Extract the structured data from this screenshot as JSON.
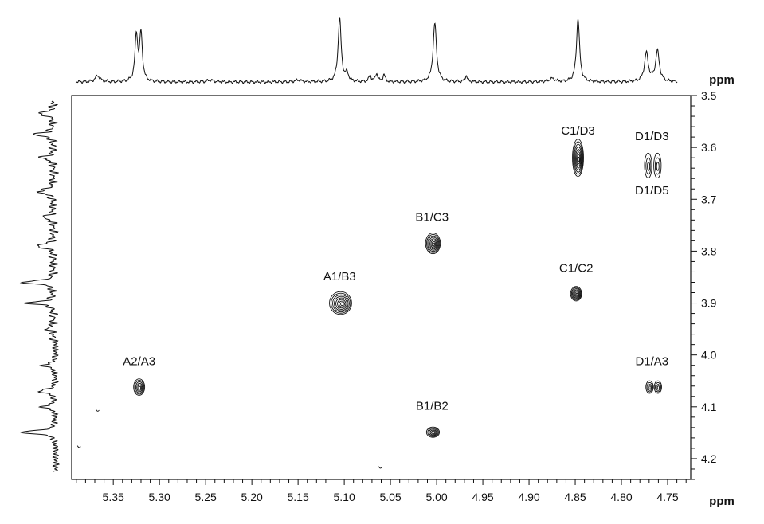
{
  "chart_data": {
    "type": "2D NMR contour plot (COSY/TOCSY-style)",
    "x_axis": {
      "unit_label": "ppm",
      "range": [
        5.395,
        4.725
      ],
      "reversed": true,
      "ticks": [
        5.35,
        5.3,
        5.25,
        5.2,
        5.15,
        5.1,
        5.05,
        5.0,
        4.95,
        4.9,
        4.85,
        4.8,
        4.75
      ],
      "tick_labels": [
        "5.35",
        "5.30",
        "5.25",
        "5.20",
        "5.15",
        "5.10",
        "5.05",
        "5.00",
        "4.95",
        "4.90",
        "4.85",
        "4.80",
        "4.75"
      ]
    },
    "y_axis": {
      "unit_label": "ppm",
      "range": [
        3.5,
        4.24
      ],
      "position": "right",
      "ticks": [
        3.5,
        3.6,
        3.7,
        3.8,
        3.9,
        4.0,
        4.1,
        4.2
      ],
      "tick_labels": [
        "3.5",
        "3.6",
        "3.7",
        "3.8",
        "3.9",
        "4.0",
        "4.1",
        "4.2"
      ]
    },
    "peaks": [
      {
        "label": "C1/D3",
        "x": 4.847,
        "y": 3.62,
        "rings": 8,
        "width": 0.006,
        "height": 0.036
      },
      {
        "label": "B1/C3",
        "x": 5.004,
        "y": 3.785,
        "rings": 8,
        "width": 0.008,
        "height": 0.02
      },
      {
        "label": "A1/B3",
        "x": 5.104,
        "y": 3.9,
        "rings": 8,
        "width": 0.012,
        "height": 0.022
      },
      {
        "label": "C1/C2",
        "x": 4.849,
        "y": 3.882,
        "rings": 7,
        "width": 0.006,
        "height": 0.014
      },
      {
        "label": "A2/A3",
        "x": 5.322,
        "y": 4.062,
        "rings": 6,
        "width": 0.006,
        "height": 0.016
      },
      {
        "label": "B1/B2",
        "x": 5.004,
        "y": 4.149,
        "rings": 6,
        "width": 0.007,
        "height": 0.01
      },
      {
        "label": "D1/A3",
        "x": 4.7695,
        "y": 4.062,
        "rings": 4,
        "width": 0.004,
        "height": 0.012
      },
      {
        "label": "D1/A3",
        "x": 4.7605,
        "y": 4.062,
        "rings": 4,
        "width": 0.004,
        "height": 0.012
      },
      {
        "label": "D1/D3",
        "x": 4.771,
        "y": 3.635,
        "rings": 3,
        "width": 0.004,
        "height": 0.024
      },
      {
        "label": "D1/D5",
        "x": 4.761,
        "y": 3.635,
        "rings": 3,
        "width": 0.004,
        "height": 0.024
      }
    ],
    "peak_labels": [
      {
        "text": "C1/D3",
        "x": 4.847,
        "y": 3.575
      },
      {
        "text": "D1/D3",
        "x": 4.767,
        "y": 3.586
      },
      {
        "text": "D1/D5",
        "x": 4.767,
        "y": 3.69
      },
      {
        "text": "B1/C3",
        "x": 5.005,
        "y": 3.742
      },
      {
        "text": "A1/B3",
        "x": 5.105,
        "y": 3.856
      },
      {
        "text": "C1/C2",
        "x": 4.849,
        "y": 3.84
      },
      {
        "text": "A2/A3",
        "x": 5.322,
        "y": 4.02
      },
      {
        "text": "D1/A3",
        "x": 4.767,
        "y": 4.02
      },
      {
        "text": "B1/B2",
        "x": 5.005,
        "y": 4.106
      }
    ],
    "noise_artifacts": [
      {
        "x": 5.367,
        "y": 4.108
      },
      {
        "x": 5.387,
        "y": 4.178
      },
      {
        "x": 5.061,
        "y": 4.218
      }
    ],
    "projection_top": {
      "peaks": [
        {
          "x": 5.367,
          "h": 0.1,
          "w": 0.003
        },
        {
          "x": 5.325,
          "h": 0.72,
          "w": 0.0018
        },
        {
          "x": 5.32,
          "h": 0.74,
          "w": 0.0018
        },
        {
          "x": 5.105,
          "h": 1.0,
          "w": 0.002
        },
        {
          "x": 5.097,
          "h": 0.12,
          "w": 0.002
        },
        {
          "x": 5.072,
          "h": 0.1,
          "w": 0.0015
        },
        {
          "x": 5.065,
          "h": 0.13,
          "w": 0.0015
        },
        {
          "x": 5.057,
          "h": 0.11,
          "w": 0.0015
        },
        {
          "x": 5.002,
          "h": 0.92,
          "w": 0.0022
        },
        {
          "x": 4.968,
          "h": 0.1,
          "w": 0.0015
        },
        {
          "x": 4.847,
          "h": 1.0,
          "w": 0.002
        },
        {
          "x": 4.773,
          "h": 0.45,
          "w": 0.0025
        },
        {
          "x": 4.761,
          "h": 0.48,
          "w": 0.0025
        },
        {
          "x": 5.245,
          "h": 0.03,
          "w": 0.004
        },
        {
          "x": 5.15,
          "h": 0.03,
          "w": 0.004
        },
        {
          "x": 4.875,
          "h": 0.05,
          "w": 0.004
        }
      ]
    },
    "projection_left": {
      "peaks": [
        {
          "y": 3.535,
          "h": 0.38,
          "w": 0.0035
        },
        {
          "y": 3.575,
          "h": 0.45,
          "w": 0.004
        },
        {
          "y": 3.62,
          "h": 0.3,
          "w": 0.004
        },
        {
          "y": 3.685,
          "h": 0.35,
          "w": 0.005
        },
        {
          "y": 3.735,
          "h": 0.25,
          "w": 0.004
        },
        {
          "y": 3.79,
          "h": 0.42,
          "w": 0.004
        },
        {
          "y": 3.86,
          "h": 0.8,
          "w": 0.003
        },
        {
          "y": 3.9,
          "h": 0.65,
          "w": 0.003
        },
        {
          "y": 3.95,
          "h": 0.18,
          "w": 0.004
        },
        {
          "y": 4.02,
          "h": 0.3,
          "w": 0.004
        },
        {
          "y": 4.07,
          "h": 0.4,
          "w": 0.004
        },
        {
          "y": 4.1,
          "h": 0.3,
          "w": 0.004
        },
        {
          "y": 4.149,
          "h": 0.85,
          "w": 0.0035
        }
      ]
    },
    "colors": {
      "line": "#111111",
      "background": "#ffffff"
    }
  }
}
